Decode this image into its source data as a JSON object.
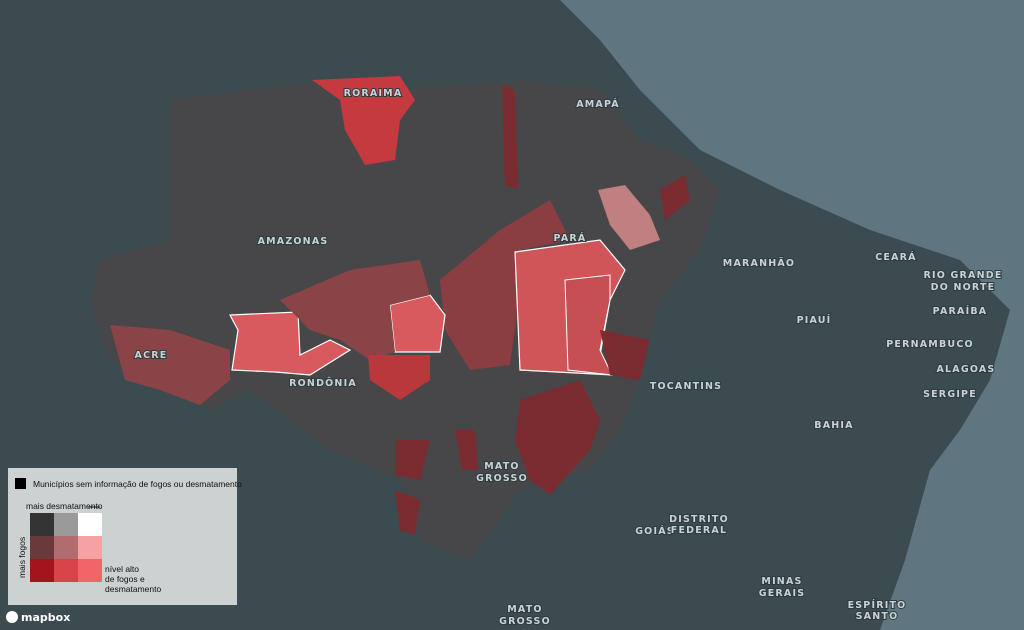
{
  "map": {
    "labels": [
      {
        "lines": [
          "RORAIMA"
        ]
      },
      {
        "lines": [
          "AMAPÁ"
        ]
      },
      {
        "lines": [
          "AMAZONAS"
        ]
      },
      {
        "lines": [
          "PARÁ"
        ]
      },
      {
        "lines": [
          "MARANHÃO"
        ]
      },
      {
        "lines": [
          "CEARÁ"
        ]
      },
      {
        "lines": [
          "RIO GRANDE",
          "DO NORTE"
        ]
      },
      {
        "lines": [
          "PARAÍBA"
        ]
      },
      {
        "lines": [
          "PIAUÍ"
        ]
      },
      {
        "lines": [
          "PERNAMBUCO"
        ]
      },
      {
        "lines": [
          "ALAGOAS"
        ]
      },
      {
        "lines": [
          "SERGIPE"
        ]
      },
      {
        "lines": [
          "ACRE"
        ]
      },
      {
        "lines": [
          "RONDÔNIA"
        ]
      },
      {
        "lines": [
          "TOCANTINS"
        ]
      },
      {
        "lines": [
          "BAHIA"
        ]
      },
      {
        "lines": [
          "MATO",
          "GROSSO"
        ]
      },
      {
        "lines": [
          "GOIÁS"
        ]
      },
      {
        "lines": [
          "DISTRITO",
          "FEDERAL"
        ]
      },
      {
        "lines": [
          "MINAS",
          "GERAIS"
        ]
      },
      {
        "lines": [
          "MATO",
          "GROSSO"
        ]
      },
      {
        "lines": [
          "ESPÍRITO",
          "SANTO"
        ]
      }
    ]
  },
  "legend": {
    "no_data": "Municípios sem informação de fogos ou desmatamento",
    "x_axis": "mais desmatamento",
    "y_axis": "mais fogos",
    "high": [
      "nível alto",
      "de fogos e",
      "desmatamento"
    ]
  },
  "attribution": "mapbox"
}
